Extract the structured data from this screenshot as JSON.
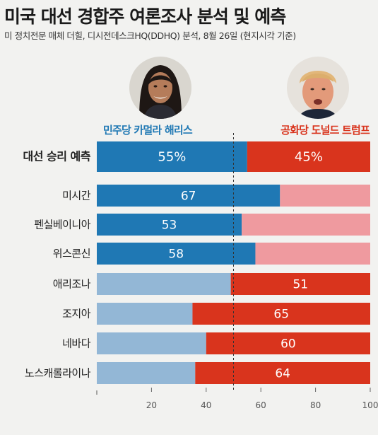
{
  "title": "미국 대선 경합주 여론조사 분석 및 예측",
  "subtitle": "미 정치전문 매체 더힐, 디시전데스크HQ(DDHQ) 분석, 8월 26일 (현지시각 기준)",
  "candidates": {
    "democrat": "민주당 카멀라 해리스",
    "republican": "공화당 도널드 트럼프"
  },
  "colors": {
    "democrat_strong": "#1f78b4",
    "democrat_light": "#93b7d6",
    "republican_strong": "#d9341d",
    "republican_light": "#ef9a9f"
  },
  "chart_data": {
    "type": "bar",
    "orientation": "horizontal-stacked",
    "categories": [
      "대선 승리 예측",
      "미시간",
      "펜실베이니아",
      "위스콘신",
      "애리조나",
      "조지아",
      "네바다",
      "노스캐롤라이나"
    ],
    "series": [
      {
        "name": "민주당 카멀라 해리스",
        "values": [
          55,
          67,
          53,
          58,
          49,
          35,
          40,
          36
        ]
      },
      {
        "name": "공화당 도널드 트럼프",
        "values": [
          45,
          33,
          47,
          42,
          51,
          65,
          60,
          64
        ]
      }
    ],
    "labels": [
      "55%",
      "67",
      "53",
      "58",
      "51",
      "65",
      "60",
      "64"
    ],
    "label_side": [
      "both",
      "dem",
      "dem",
      "dem",
      "rep",
      "rep",
      "rep",
      "rep"
    ],
    "labels_rep_first_row": "45%",
    "xticks": [
      "20",
      "40",
      "60",
      "80",
      "100"
    ],
    "xlim": [
      0,
      100
    ],
    "reference_line": 50
  }
}
